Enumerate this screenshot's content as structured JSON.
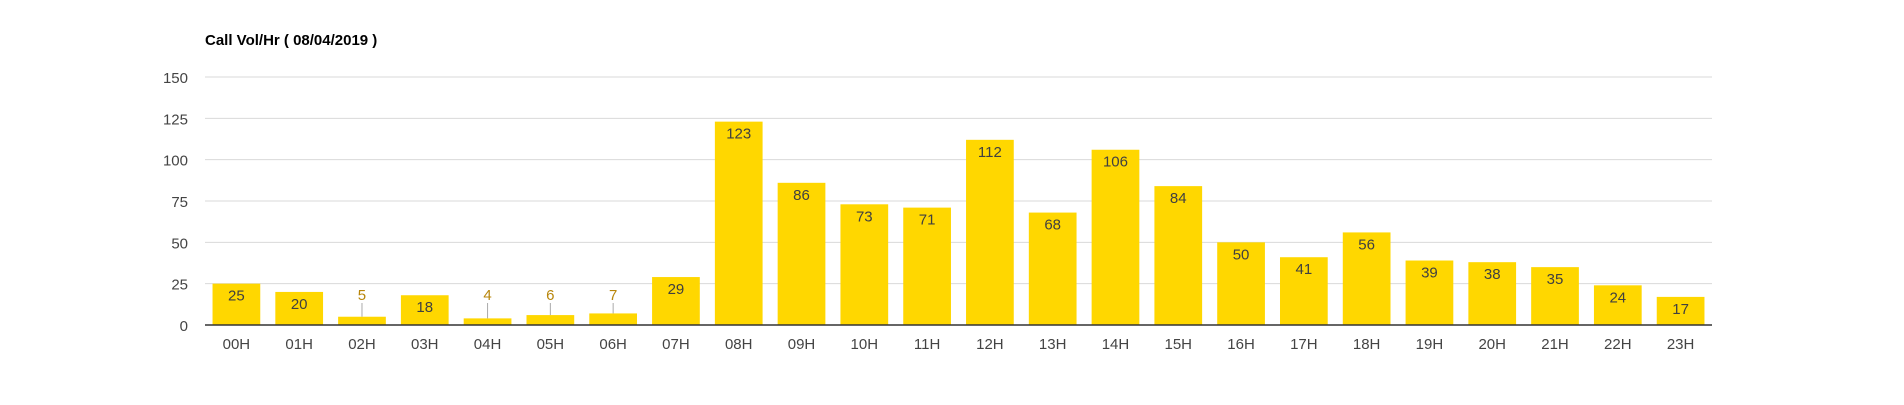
{
  "chart_data": {
    "type": "bar",
    "title": "Call Vol/Hr ( 08/04/2019 )",
    "xlabel": "",
    "ylabel": "",
    "categories": [
      "00H",
      "01H",
      "02H",
      "03H",
      "04H",
      "05H",
      "06H",
      "07H",
      "08H",
      "09H",
      "10H",
      "11H",
      "12H",
      "13H",
      "14H",
      "15H",
      "16H",
      "17H",
      "18H",
      "19H",
      "20H",
      "21H",
      "22H",
      "23H"
    ],
    "series": [
      {
        "values": [
          25,
          20,
          5,
          18,
          4,
          6,
          7,
          29,
          123,
          86,
          73,
          71,
          112,
          68,
          106,
          84,
          50,
          41,
          56,
          39,
          38,
          35,
          24,
          17
        ]
      }
    ],
    "ylim": [
      0,
      150
    ],
    "yticks": [
      0,
      25,
      50,
      75,
      100,
      125,
      150
    ],
    "grid": true,
    "legend": "none",
    "colors": {
      "bar": "#FFD700",
      "label_inside": "#404040",
      "label_outside": "#B8860B",
      "grid": "#d9d9d9",
      "axis": "#333333",
      "tick_label": "#444444",
      "title": "#000000"
    }
  }
}
